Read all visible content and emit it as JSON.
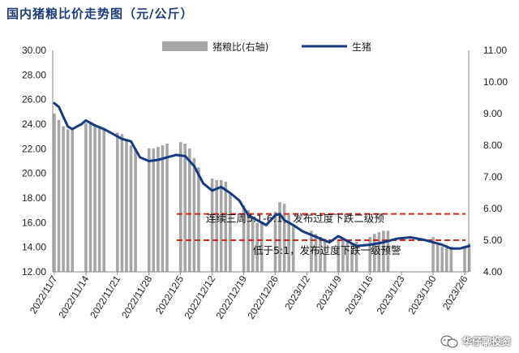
{
  "title": "国内猪粮比价走势图（元/公斤）",
  "watermark": "华仔聊投资",
  "colors": {
    "bar": "#a6a6a6",
    "line": "#163a82",
    "threshold": "#d9261c",
    "title": "#1f3d7a"
  },
  "chart_data": {
    "type": "bar+line",
    "legend": [
      {
        "name": "猪粮比(右轴)",
        "kind": "bar"
      },
      {
        "name": "生猪",
        "kind": "line"
      }
    ],
    "legend_position": "top",
    "x_ticks": [
      "2022/11/7",
      "2022/11/14",
      "2022/11/21",
      "2022/11/28",
      "2022/12/5",
      "2022/12/12",
      "2022/12/19",
      "2022/12/26",
      "2023/1/2",
      "2023/1/9",
      "2023/1/16",
      "2023/1/23",
      "2023/1/30",
      "2023/2/6"
    ],
    "x_range": [
      "2022/11/7",
      "2023/2/6"
    ],
    "left_axis": {
      "min": 12,
      "max": 30,
      "step": 2,
      "tick_labels": [
        "12.00",
        "14.00",
        "16.00",
        "18.00",
        "20.00",
        "22.00",
        "24.00",
        "26.00",
        "28.00",
        "30.00"
      ]
    },
    "right_axis": {
      "min": 4,
      "max": 11,
      "step": 1,
      "tick_labels": [
        "4.00",
        "5.00",
        "6.00",
        "7.00",
        "8.00",
        "9.00",
        "10.00",
        "11.00"
      ]
    },
    "bars_ratio": {
      "axis": "right",
      "dates": [
        "2022/11/7",
        "2022/11/8",
        "2022/11/9",
        "2022/11/10",
        "2022/11/11",
        "2022/11/14",
        "2022/11/15",
        "2022/11/16",
        "2022/11/17",
        "2022/11/18",
        "2022/11/21",
        "2022/11/22",
        "2022/11/23",
        "2022/11/24",
        "2022/11/25",
        "2022/11/28",
        "2022/11/29",
        "2022/11/30",
        "2022/12/1",
        "2022/12/2",
        "2022/12/5",
        "2022/12/6",
        "2022/12/7",
        "2022/12/8",
        "2022/12/9",
        "2022/12/12",
        "2022/12/13",
        "2022/12/14",
        "2022/12/15",
        "2022/12/16",
        "2022/12/19",
        "2022/12/20",
        "2022/12/21",
        "2022/12/22",
        "2022/12/23",
        "2022/12/26",
        "2022/12/27",
        "2022/12/28",
        "2022/12/29",
        "2022/12/30",
        "2023/1/3",
        "2023/1/4",
        "2023/1/5",
        "2023/1/6",
        "2023/1/9",
        "2023/1/10",
        "2023/1/11",
        "2023/1/12",
        "2023/1/13",
        "2023/1/16",
        "2023/1/17",
        "2023/1/18",
        "2023/1/19",
        "2023/1/20",
        "2023/1/30",
        "2023/1/31",
        "2023/2/1",
        "2023/2/2",
        "2023/2/3",
        "2023/2/6",
        "2023/2/7"
      ],
      "values": [
        9.0,
        8.8,
        8.6,
        8.5,
        8.55,
        8.7,
        8.75,
        8.6,
        8.55,
        8.5,
        8.4,
        8.35,
        8.2,
        8.0,
        7.9,
        7.9,
        7.9,
        7.95,
        8.0,
        8.05,
        8.1,
        8.05,
        7.9,
        7.6,
        7.3,
        6.95,
        6.9,
        6.9,
        6.85,
        6.5,
        6.1,
        5.95,
        5.7,
        5.55,
        5.6,
        5.9,
        6.2,
        6.15,
        5.8,
        5.45,
        5.3,
        5.2,
        5.1,
        5.05,
        5.0,
        5.0,
        4.95,
        4.9,
        4.95,
        5.1,
        5.2,
        5.25,
        5.3,
        5.3,
        5.1,
        4.9,
        4.8,
        4.75,
        4.8,
        4.8,
        4.9
      ]
    },
    "line_hog_price": {
      "axis": "left",
      "dates": [
        "2022/11/7",
        "2022/11/8",
        "2022/11/9",
        "2022/11/10",
        "2022/11/11",
        "2022/11/12",
        "2022/11/13",
        "2022/11/14",
        "2022/11/16",
        "2022/11/18",
        "2022/11/20",
        "2022/11/22",
        "2022/11/24",
        "2022/11/26",
        "2022/11/28",
        "2022/11/30",
        "2022/12/2",
        "2022/12/4",
        "2022/12/6",
        "2022/12/8",
        "2022/12/10",
        "2022/12/12",
        "2022/12/14",
        "2022/12/16",
        "2022/12/18",
        "2022/12/20",
        "2022/12/22",
        "2022/12/24",
        "2022/12/26",
        "2022/12/27",
        "2022/12/28",
        "2022/12/30",
        "2023/1/1",
        "2023/1/3",
        "2023/1/5",
        "2023/1/7",
        "2023/1/9",
        "2023/1/11",
        "2023/1/13",
        "2023/1/16",
        "2023/1/19",
        "2023/1/22",
        "2023/1/25",
        "2023/1/28",
        "2023/1/30",
        "2023/2/1",
        "2023/2/3",
        "2023/2/5",
        "2023/2/7"
      ],
      "values": [
        25.7,
        25.4,
        24.6,
        23.8,
        23.6,
        23.8,
        24.0,
        24.3,
        23.9,
        23.6,
        23.2,
        22.8,
        22.6,
        21.3,
        21.0,
        21.1,
        21.3,
        21.5,
        21.4,
        20.6,
        19.2,
        18.6,
        18.9,
        18.4,
        17.8,
        16.6,
        16.2,
        15.8,
        16.6,
        16.7,
        16.2,
        15.8,
        15.3,
        15.0,
        14.7,
        14.4,
        14.9,
        14.5,
        14.1,
        14.2,
        14.4,
        14.7,
        14.8,
        14.6,
        14.4,
        14.2,
        13.9,
        13.9,
        14.1
      ]
    },
    "thresholds": [
      {
        "axis": "right",
        "value": 5.83,
        "label": "连续三周5:1-6:1，发布过度下跌二级预"
      },
      {
        "axis": "right",
        "value": 5.0,
        "label": "低于5:1，发布过度下跌一级预警"
      }
    ],
    "grid": false
  }
}
